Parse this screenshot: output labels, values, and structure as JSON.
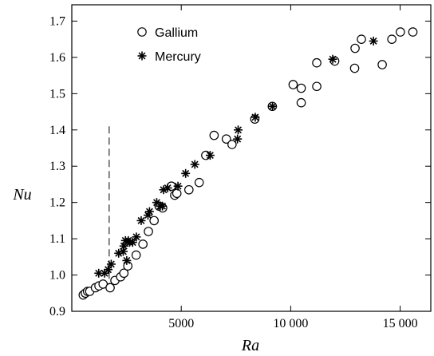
{
  "chart_data": {
    "type": "scatter",
    "title": "",
    "xlabel": "Ra",
    "ylabel": "Nu",
    "xlim": [
      0,
      16400
    ],
    "ylim": [
      0.9,
      1.745
    ],
    "grid": false,
    "legend_position": "top-left",
    "xticks": [
      5000,
      10000,
      15000
    ],
    "xtick_labels": [
      "5000",
      "10 000",
      "15 000"
    ],
    "yticks": [
      0.9,
      1.0,
      1.1,
      1.2,
      1.3,
      1.4,
      1.5,
      1.6,
      1.7
    ],
    "ytick_labels": [
      "0.9",
      "1.0",
      "1.1",
      "1.2",
      "1.3",
      "1.4",
      "1.5",
      "1.6",
      "1.7"
    ],
    "reference_line": {
      "x": 1708,
      "style": "dashed",
      "y_range": [
        0.96,
        1.41
      ]
    },
    "series": [
      {
        "name": "Gallium",
        "marker": "circle",
        "points": [
          [
            520,
            0.945
          ],
          [
            620,
            0.95
          ],
          [
            720,
            0.955
          ],
          [
            820,
            0.955
          ],
          [
            1080,
            0.965
          ],
          [
            1240,
            0.97
          ],
          [
            1430,
            0.975
          ],
          [
            1750,
            0.965
          ],
          [
            1970,
            0.985
          ],
          [
            2230,
            0.995
          ],
          [
            2380,
            1.005
          ],
          [
            2560,
            1.025
          ],
          [
            2940,
            1.055
          ],
          [
            3250,
            1.085
          ],
          [
            3500,
            1.12
          ],
          [
            3760,
            1.15
          ],
          [
            3990,
            1.19
          ],
          [
            4150,
            1.185
          ],
          [
            4550,
            1.245
          ],
          [
            4700,
            1.22
          ],
          [
            4800,
            1.225
          ],
          [
            5350,
            1.235
          ],
          [
            5820,
            1.255
          ],
          [
            6120,
            1.33
          ],
          [
            6500,
            1.385
          ],
          [
            7060,
            1.375
          ],
          [
            7320,
            1.36
          ],
          [
            8360,
            1.43
          ],
          [
            9160,
            1.465
          ],
          [
            10110,
            1.525
          ],
          [
            10480,
            1.515
          ],
          [
            10480,
            1.475
          ],
          [
            11190,
            1.52
          ],
          [
            11190,
            1.585
          ],
          [
            12010,
            1.59
          ],
          [
            12920,
            1.57
          ],
          [
            12940,
            1.625
          ],
          [
            13230,
            1.65
          ],
          [
            14180,
            1.58
          ],
          [
            14620,
            1.65
          ],
          [
            15010,
            1.67
          ],
          [
            15580,
            1.67
          ]
        ]
      },
      {
        "name": "Mercury",
        "marker": "asterisk",
        "points": [
          [
            1230,
            1.005
          ],
          [
            1500,
            1.005
          ],
          [
            1800,
            1.03
          ],
          [
            1660,
            1.015
          ],
          [
            2140,
            1.06
          ],
          [
            2350,
            1.065
          ],
          [
            2380,
            1.08
          ],
          [
            2450,
            1.095
          ],
          [
            2580,
            1.095
          ],
          [
            2640,
            1.09
          ],
          [
            2510,
            1.04
          ],
          [
            2780,
            1.09
          ],
          [
            2950,
            1.105
          ],
          [
            3170,
            1.15
          ],
          [
            3480,
            1.165
          ],
          [
            3550,
            1.175
          ],
          [
            3880,
            1.2
          ],
          [
            4040,
            1.19
          ],
          [
            4140,
            1.19
          ],
          [
            4190,
            1.235
          ],
          [
            4380,
            1.24
          ],
          [
            4850,
            1.245
          ],
          [
            5200,
            1.28
          ],
          [
            5620,
            1.305
          ],
          [
            6320,
            1.33
          ],
          [
            7570,
            1.375
          ],
          [
            7600,
            1.4
          ],
          [
            8380,
            1.435
          ],
          [
            9170,
            1.465
          ],
          [
            11920,
            1.595
          ],
          [
            13780,
            1.645
          ]
        ]
      }
    ]
  }
}
